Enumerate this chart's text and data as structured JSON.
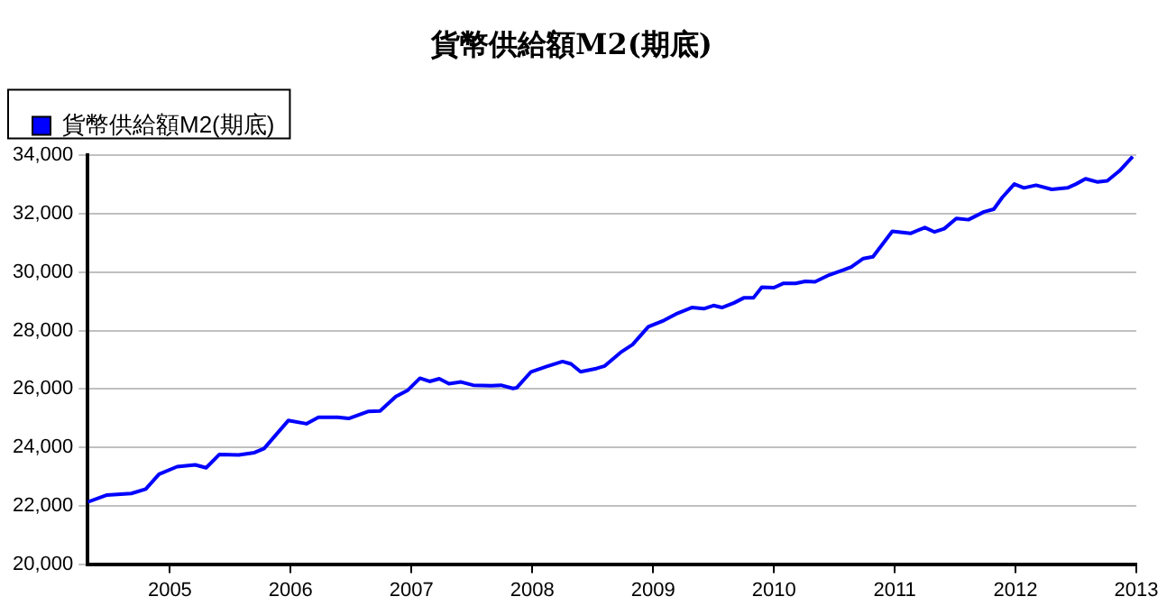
{
  "chart_data": {
    "type": "line",
    "title": "貨幣供給額M2(期底)",
    "x": [
      2004.32,
      2004.48,
      2004.68,
      2004.8,
      2004.91,
      2005.06,
      2005.21,
      2005.3,
      2005.41,
      2005.57,
      2005.7,
      2005.78,
      2005.98,
      2006.13,
      2006.23,
      2006.39,
      2006.48,
      2006.64,
      2006.74,
      2006.87,
      2006.97,
      2007.07,
      2007.15,
      2007.23,
      2007.31,
      2007.41,
      2007.51,
      2007.66,
      2007.74,
      2007.84,
      2007.87,
      2007.99,
      2008.12,
      2008.25,
      2008.32,
      2008.4,
      2008.53,
      2008.6,
      2008.73,
      2008.83,
      2008.96,
      2009.09,
      2009.19,
      2009.32,
      2009.42,
      2009.5,
      2009.57,
      2009.67,
      2009.75,
      2009.83,
      2009.9,
      2010,
      2010.08,
      2010.18,
      2010.26,
      2010.34,
      2010.46,
      2010.57,
      2010.64,
      2010.74,
      2010.82,
      2010.98,
      2011.13,
      2011.25,
      2011.33,
      2011.41,
      2011.51,
      2011.61,
      2011.74,
      2011.82,
      2011.89,
      2011.99,
      2012.07,
      2012.17,
      2012.3,
      2012.43,
      2012.5,
      2012.58,
      2012.68,
      2012.76,
      2012.86,
      2012.97
    ],
    "series": [
      {
        "name": "貨幣供給額M2(期底)",
        "color": "#0000ff",
        "values": [
          22130,
          22370,
          22420,
          22570,
          23080,
          23340,
          23400,
          23300,
          23760,
          23740,
          23820,
          23960,
          24920,
          24810,
          25030,
          25030,
          24990,
          25230,
          25250,
          25740,
          25960,
          26370,
          26260,
          26350,
          26180,
          26240,
          26130,
          26110,
          26130,
          26020,
          26040,
          26590,
          26770,
          26940,
          26860,
          26590,
          26700,
          26790,
          27250,
          27520,
          28130,
          28350,
          28570,
          28790,
          28750,
          28860,
          28790,
          28950,
          29120,
          29120,
          29490,
          29470,
          29620,
          29620,
          29690,
          29670,
          29910,
          30070,
          30180,
          30470,
          30530,
          31400,
          31330,
          31530,
          31380,
          31490,
          31840,
          31800,
          32070,
          32160,
          32560,
          33020,
          32890,
          32980,
          32840,
          32890,
          33020,
          33200,
          33090,
          33130,
          33470,
          33960
        ]
      }
    ],
    "xlim": [
      2004.32,
      2013
    ],
    "xticks": [
      2005,
      2006,
      2007,
      2008,
      2009,
      2010,
      2011,
      2012,
      2013
    ],
    "ylim": [
      20000,
      34000
    ],
    "yticks": [
      {
        "value": 20000,
        "label": "20,000"
      },
      {
        "value": 22000,
        "label": "22,000"
      },
      {
        "value": 24000,
        "label": "24,000"
      },
      {
        "value": 26000,
        "label": "26,000"
      },
      {
        "value": 28000,
        "label": "28,000"
      },
      {
        "value": 30000,
        "label": "30,000"
      },
      {
        "value": 32000,
        "label": "32,000"
      },
      {
        "value": 34000,
        "label": "34,000"
      }
    ],
    "grid": "y",
    "legend": "top left",
    "marker": "none",
    "line_style": "solid"
  }
}
